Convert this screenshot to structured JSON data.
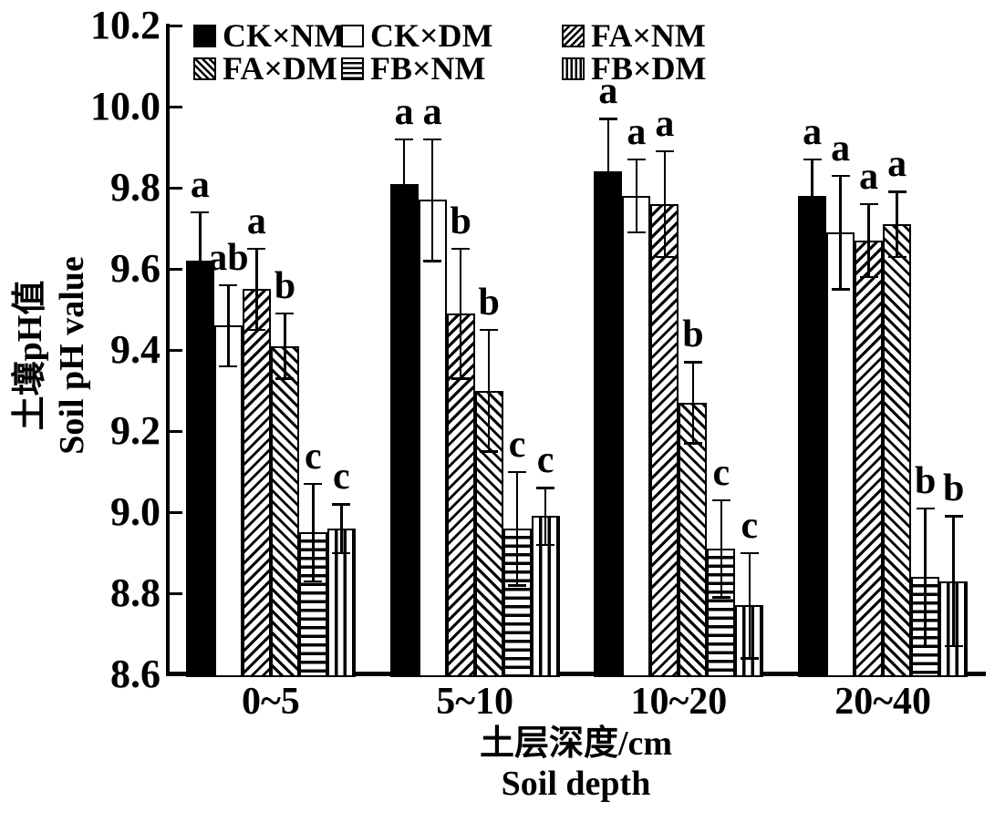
{
  "chart_data": {
    "type": "bar",
    "categories": [
      "0~5",
      "5~10",
      "10~20",
      "20~40"
    ],
    "series": [
      {
        "name": "CK×NM",
        "pattern": "solid",
        "values": [
          9.62,
          9.81,
          9.84,
          9.78
        ],
        "errors": [
          0.12,
          0.11,
          0.13,
          0.09
        ],
        "sig_letters": [
          "a",
          "a",
          "a",
          "a"
        ]
      },
      {
        "name": "CK×DM",
        "pattern": "open",
        "values": [
          9.46,
          9.77,
          9.78,
          9.69
        ],
        "errors": [
          0.1,
          0.15,
          0.09,
          0.14
        ],
        "sig_letters": [
          "ab",
          "a",
          "a",
          "a"
        ]
      },
      {
        "name": "FA×NM",
        "pattern": "diag-up",
        "values": [
          9.55,
          9.49,
          9.76,
          9.67
        ],
        "errors": [
          0.1,
          0.16,
          0.13,
          0.09
        ],
        "sig_letters": [
          "a",
          "b",
          "a",
          "a"
        ]
      },
      {
        "name": "FA×DM",
        "pattern": "diag-down",
        "values": [
          9.41,
          9.3,
          9.27,
          9.71
        ],
        "errors": [
          0.08,
          0.15,
          0.1,
          0.08
        ],
        "sig_letters": [
          "b",
          "b",
          "b",
          "a"
        ]
      },
      {
        "name": "FB×NM",
        "pattern": "horiz",
        "values": [
          8.95,
          8.96,
          8.91,
          8.84
        ],
        "errors": [
          0.12,
          0.14,
          0.12,
          0.17
        ],
        "sig_letters": [
          "c",
          "c",
          "c",
          "b"
        ]
      },
      {
        "name": "FB×DM",
        "pattern": "vert",
        "values": [
          8.96,
          8.99,
          8.77,
          8.83
        ],
        "errors": [
          0.06,
          0.07,
          0.13,
          0.16
        ],
        "sig_letters": [
          "c",
          "c",
          "c",
          "b"
        ]
      }
    ],
    "xlabel": {
      "zh": "土层深度/cm",
      "en": "Soil depth"
    },
    "ylabel": {
      "zh": "土壤pH值",
      "en": "Soil pH value"
    },
    "ylim": [
      8.6,
      10.2
    ],
    "yticks": [
      10.2,
      10.0,
      9.8,
      9.6,
      9.4,
      9.2,
      9.0,
      8.8,
      8.6
    ],
    "ytick_labels": [
      "10.2",
      "10.0",
      "9.8",
      "9.6",
      "9.4",
      "9.2",
      "9.0",
      "8.8",
      "8.6"
    ],
    "grid": false,
    "legend_position": "top-left-inside",
    "colors": {
      "foreground": "#000000",
      "background": "#ffffff"
    }
  }
}
